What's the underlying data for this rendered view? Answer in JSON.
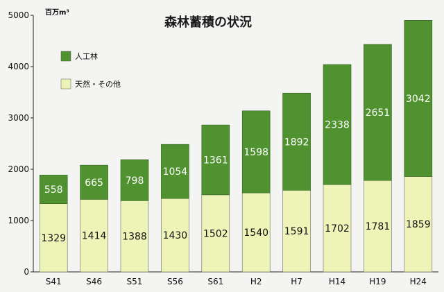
{
  "chart_data": {
    "type": "bar",
    "stacked": true,
    "title": "森林蓄積の状況",
    "unit_label": "百万m³",
    "categories": [
      "S41",
      "S46",
      "S51",
      "S56",
      "S61",
      "H2",
      "H7",
      "H14",
      "H19",
      "H24"
    ],
    "series": [
      {
        "name": "天然・その他",
        "color": "#eef3b8",
        "values": [
          1329,
          1414,
          1388,
          1430,
          1502,
          1540,
          1591,
          1702,
          1781,
          1859
        ]
      },
      {
        "name": "人工林",
        "color": "#4f922f",
        "values": [
          558,
          665,
          798,
          1054,
          1361,
          1598,
          1892,
          2338,
          2651,
          3042
        ]
      }
    ],
    "ylim": [
      0,
      5000
    ],
    "yticks": [
      0,
      1000,
      2000,
      3000,
      4000,
      5000
    ],
    "grid": false,
    "legend_position": "top-left"
  }
}
